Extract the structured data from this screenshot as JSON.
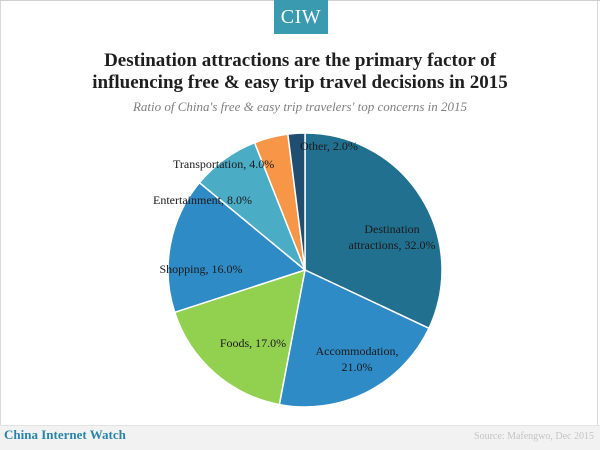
{
  "logo": {
    "text": "CIW",
    "color": "#3a9ab0"
  },
  "header": {
    "title_line1": "Destination attractions are the primary factor of",
    "title_line2": "influencing free  & easy trip travel decisions in 2015",
    "subtitle": "Ratio of China's free & easy trip travelers' top concerns in 2015"
  },
  "chart_data": {
    "type": "pie",
    "title": "Destination attractions are the primary factor of influencing free  & easy trip travel decisions in 2015",
    "subtitle": "Ratio of China's free & easy trip travelers' top concerns in 2015",
    "unit": "%",
    "legend": "none",
    "start_angle": "12 o'clock, clockwise",
    "slices": [
      {
        "label": "Destination attractions",
        "value": 32.0,
        "display": "32.0%",
        "color": "#21708f"
      },
      {
        "label": "Accommodation",
        "value": 21.0,
        "display": "21.0%",
        "color": "#2e8bc6"
      },
      {
        "label": "Foods",
        "value": 17.0,
        "display": "17.0%",
        "color": "#92d050"
      },
      {
        "label": "Shopping",
        "value": 16.0,
        "display": "16.0%",
        "color": "#2e8bc6"
      },
      {
        "label": "Entertainment",
        "value": 8.0,
        "display": "8.0%",
        "color": "#4bacc6"
      },
      {
        "label": "Transportation",
        "value": 4.0,
        "display": "4.0%",
        "color": "#f79646"
      },
      {
        "label": "Other",
        "value": 2.0,
        "display": "2.0%",
        "color": "#1f4e70"
      }
    ]
  },
  "footer": {
    "brand": "China Internet Watch",
    "source": "Source: Mafengwo, Dec 2015"
  }
}
